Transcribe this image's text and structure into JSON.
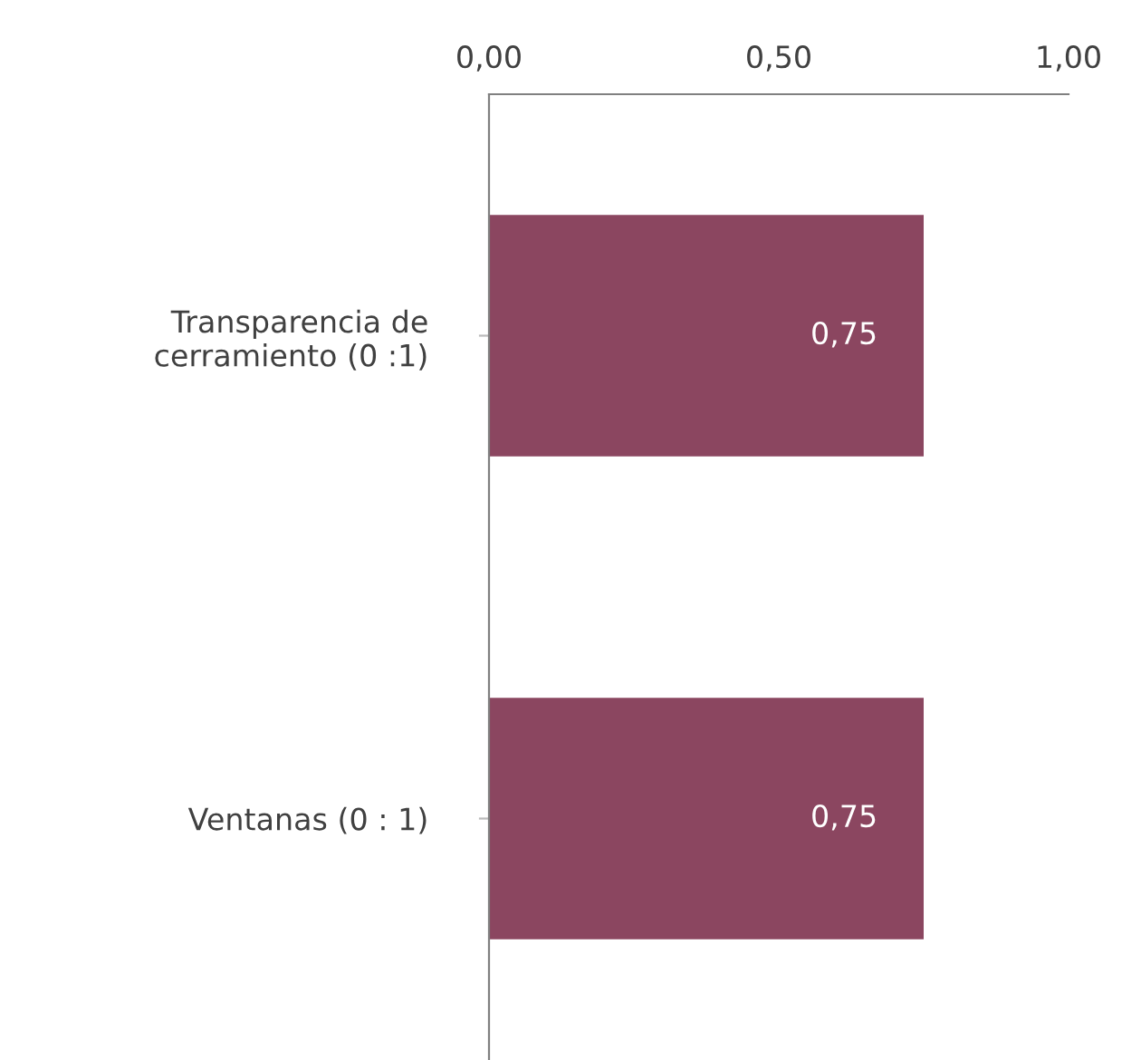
{
  "chart_data": {
    "type": "bar",
    "orientation": "horizontal",
    "categories": [
      "Transparencia de\ncerramiento (0 :1)",
      "Ventanas (0 : 1)"
    ],
    "values": [
      0.75,
      0.75
    ],
    "color": "#8b4660",
    "value_labels": [
      "0,75",
      "0,75"
    ],
    "xlim": [
      0,
      1
    ],
    "xticks": [
      {
        "value": 0,
        "label": "0,00"
      },
      {
        "value": 0.5,
        "label": "0,50"
      },
      {
        "value": 1,
        "label": "1,00"
      }
    ],
    "grid": false,
    "legend": false
  }
}
